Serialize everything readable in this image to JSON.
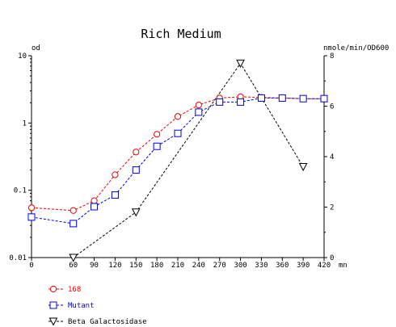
{
  "chart_data": {
    "type": "line",
    "title": "Rich Medium",
    "y_left_label": "od",
    "y_right_label": "nmole/min/OD600",
    "x_unit_label": "mn",
    "x": [
      0,
      60,
      90,
      120,
      150,
      180,
      210,
      240,
      270,
      300,
      330,
      360,
      390,
      420
    ],
    "x_tick_labels": [
      "0",
      "60",
      "90",
      "120",
      "150",
      "180",
      "210",
      "240",
      "270",
      "300",
      "330",
      "360",
      "390",
      "420"
    ],
    "xlim": [
      0,
      420
    ],
    "y_left_scale": "log",
    "y_left_lim": [
      0.01,
      10
    ],
    "y_left_tick_labels": [
      "0.01",
      "0.1",
      "1",
      "10"
    ],
    "y_right_lim": [
      0,
      8
    ],
    "y_right_tick_labels": [
      "0",
      "2",
      "4",
      "6",
      "8"
    ],
    "grid": false,
    "legend_position": "bottom-left",
    "series": [
      {
        "name": "168",
        "axis": "left",
        "marker": "circle",
        "color": "#ee0000",
        "points": [
          [
            0,
            0.055
          ],
          [
            60,
            0.05
          ],
          [
            90,
            0.07
          ],
          [
            120,
            0.17
          ],
          [
            150,
            0.37
          ],
          [
            180,
            0.68
          ],
          [
            210,
            1.25
          ],
          [
            240,
            1.85
          ],
          [
            270,
            2.35
          ],
          [
            300,
            2.45
          ],
          [
            330,
            2.4
          ],
          [
            360,
            2.35
          ],
          [
            390,
            2.3
          ],
          [
            420,
            2.3
          ]
        ]
      },
      {
        "name": "Mutant",
        "axis": "left",
        "marker": "square",
        "color": "#0000dd",
        "points": [
          [
            0,
            0.04
          ],
          [
            60,
            0.032
          ],
          [
            90,
            0.057
          ],
          [
            120,
            0.085
          ],
          [
            150,
            0.2
          ],
          [
            180,
            0.45
          ],
          [
            210,
            0.7
          ],
          [
            240,
            1.45
          ],
          [
            270,
            2.05
          ],
          [
            300,
            2.05
          ],
          [
            330,
            2.35
          ],
          [
            360,
            2.35
          ],
          [
            390,
            2.3
          ],
          [
            420,
            2.3
          ]
        ]
      },
      {
        "name": "Beta Galactosidase",
        "axis": "right",
        "marker": "triangle-down",
        "color": "#000000",
        "points": [
          [
            60,
            0.0
          ],
          [
            150,
            1.8
          ],
          [
            300,
            7.7
          ],
          [
            390,
            3.6
          ]
        ]
      }
    ]
  }
}
